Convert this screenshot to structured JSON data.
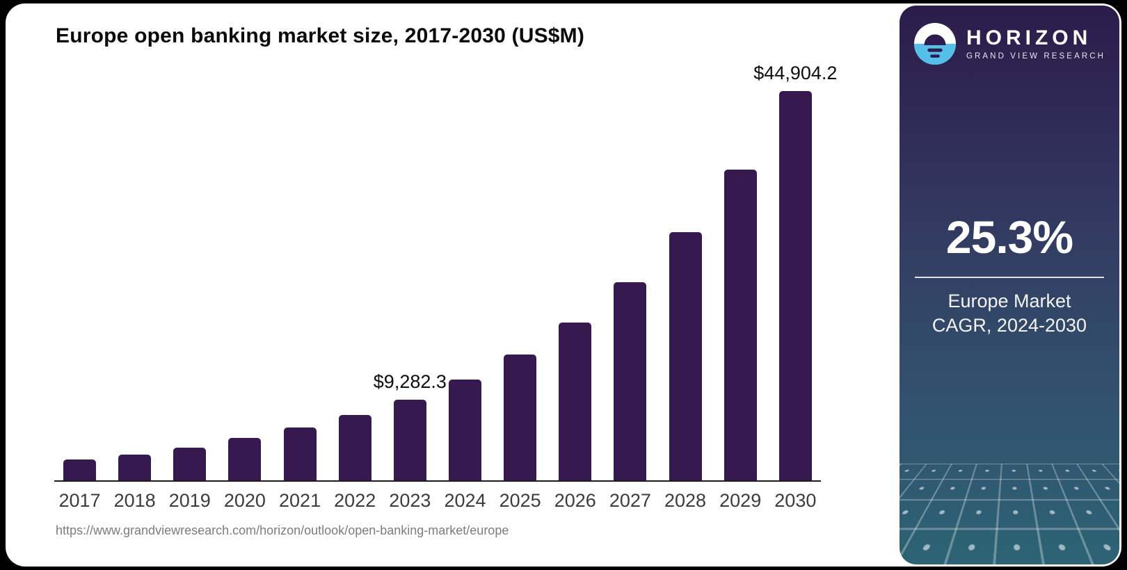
{
  "chart": {
    "title": "Europe open banking market size, 2017-2030 (US$M)",
    "source_url": "https://www.grandviewresearch.com/horizon/outlook/open-banking-market/europe",
    "bar_color": "#36194e",
    "axis_color": "#1c1c1c"
  },
  "chart_data": {
    "type": "bar",
    "title": "Europe open banking market size, 2017-2030 (US$M)",
    "unit": "US$M",
    "categories": [
      "2017",
      "2018",
      "2019",
      "2020",
      "2021",
      "2022",
      "2023",
      "2024",
      "2025",
      "2026",
      "2027",
      "2028",
      "2029",
      "2030"
    ],
    "values": [
      2400,
      2970,
      3770,
      4890,
      6100,
      7540,
      9282.3,
      11600,
      14540,
      18220,
      22830,
      28600,
      35840,
      44904.2
    ],
    "value_labels": {
      "2023": "$9,282.3",
      "2030": "$44,904.2"
    },
    "ylim": [
      0,
      45000
    ],
    "grid": false,
    "legend": null
  },
  "sidebar": {
    "logo": {
      "brand": "HORIZON",
      "sub_brand": "GRAND VIEW RESEARCH"
    },
    "stat": {
      "value": "25.3%",
      "label_line1": "Europe Market",
      "label_line2": "CAGR, 2024-2030"
    },
    "colors": {
      "gradient_top": "#2c1b4b",
      "gradient_mid": "#32506d",
      "gradient_bottom": "#2d6375",
      "accent_blue": "#55bee9",
      "logo_notch": "#2c1d4e"
    }
  }
}
